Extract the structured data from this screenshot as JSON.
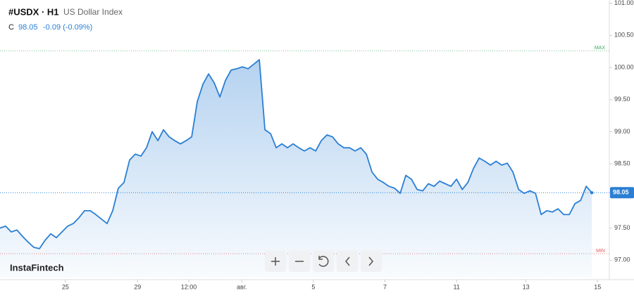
{
  "chart_data": {
    "type": "area",
    "symbol": "#USDX · H1",
    "name": "US Dollar Index",
    "close_prefix": "C",
    "close": 98.05,
    "change": "-0.09 (-0.09%)",
    "brand": "InstaFintech",
    "color": "#2a7fd4",
    "values": [
      97.5,
      97.53,
      97.44,
      97.47,
      97.37,
      97.28,
      97.2,
      97.18,
      97.31,
      97.41,
      97.35,
      97.44,
      97.53,
      97.57,
      97.66,
      97.77,
      97.77,
      97.71,
      97.64,
      97.57,
      97.77,
      98.12,
      98.21,
      98.56,
      98.65,
      98.62,
      98.75,
      99.0,
      98.86,
      99.03,
      98.92,
      98.86,
      98.81,
      98.86,
      98.92,
      99.47,
      99.74,
      99.9,
      99.76,
      99.54,
      99.8,
      99.96,
      99.98,
      100.01,
      99.98,
      100.05,
      100.12,
      99.03,
      98.97,
      98.75,
      98.81,
      98.75,
      98.81,
      98.75,
      98.7,
      98.75,
      98.7,
      98.86,
      98.95,
      98.92,
      98.81,
      98.75,
      98.75,
      98.7,
      98.75,
      98.65,
      98.37,
      98.26,
      98.21,
      98.15,
      98.12,
      98.04,
      98.32,
      98.26,
      98.1,
      98.08,
      98.19,
      98.15,
      98.23,
      98.19,
      98.15,
      98.26,
      98.1,
      98.21,
      98.43,
      98.59,
      98.54,
      98.48,
      98.54,
      98.48,
      98.51,
      98.37,
      98.1,
      98.04,
      98.08,
      98.04,
      97.71,
      97.77,
      97.75,
      97.8,
      97.71,
      97.71,
      97.88,
      97.93,
      98.15,
      98.05
    ],
    "xlim": [
      0,
      108.1
    ],
    "xticks": [
      {
        "value": 11.6,
        "label": "25"
      },
      {
        "value": 24.4,
        "label": "29"
      },
      {
        "value": 33.5,
        "label": "12:00"
      },
      {
        "value": 42.9,
        "label": "авг."
      },
      {
        "value": 55.6,
        "label": "5"
      },
      {
        "value": 68.3,
        "label": "7"
      },
      {
        "value": 81,
        "label": "11"
      },
      {
        "value": 93.3,
        "label": "13"
      },
      {
        "value": 106,
        "label": "15"
      }
    ],
    "ylim": [
      96.73,
      101.05
    ],
    "yticks": [
      {
        "value": 97,
        "label": "97.00"
      },
      {
        "value": 97.5,
        "label": "97.50"
      },
      {
        "value": 98.5,
        "label": "98.50"
      },
      {
        "value": 99,
        "label": "99.00"
      },
      {
        "value": 99.5,
        "label": "99.50"
      },
      {
        "value": 100,
        "label": "100.00"
      },
      {
        "value": 100.5,
        "label": "100.50"
      },
      {
        "value": 101,
        "label": "101.00"
      }
    ],
    "max_line": {
      "value": 100.26,
      "label": "MAX",
      "color": "#3aa860"
    },
    "min_line": {
      "value": 97.1,
      "label": "MIN",
      "color": "#e05a5a"
    }
  }
}
